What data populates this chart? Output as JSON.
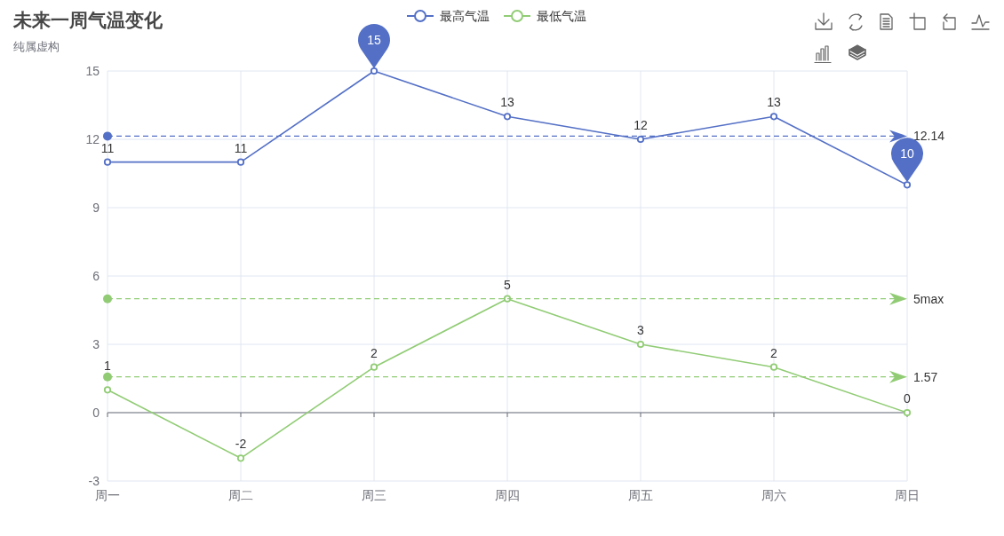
{
  "chart_data": {
    "type": "line",
    "title": "未来一周气温变化",
    "subtitle": "纯属虚构",
    "categories": [
      "周一",
      "周二",
      "周三",
      "周四",
      "周五",
      "周六",
      "周日"
    ],
    "series": [
      {
        "name": "最高气温",
        "color": "#5470c6",
        "values": [
          11,
          11,
          15,
          13,
          12,
          13,
          10
        ],
        "value_labels": [
          "11",
          "11",
          null,
          "13",
          "12",
          "13",
          null
        ]
      },
      {
        "name": "最低气温",
        "color": "#91cc75",
        "values": [
          1,
          -2,
          2,
          5,
          3,
          2,
          0
        ],
        "value_labels": [
          "1",
          "-2",
          "2",
          "5",
          "3",
          "2",
          "0"
        ]
      }
    ],
    "ylim": [
      -3,
      15
    ],
    "yticks": [
      -3,
      0,
      3,
      6,
      9,
      12,
      15
    ],
    "grid": true,
    "legend": "top",
    "marker": "circle",
    "ref_lines": [
      {
        "axis": "y",
        "value": 12.14,
        "label": "12.14",
        "color": "#5470c6",
        "line_style": "dashed"
      },
      {
        "axis": "y",
        "value": 5,
        "label": "5max",
        "color": "#91cc75",
        "line_style": "dashed"
      },
      {
        "axis": "y",
        "value": 1.57,
        "label": "1.57",
        "color": "#91cc75",
        "line_style": "dashed"
      }
    ],
    "annotations": [
      {
        "text": "15",
        "x": "周三",
        "y": 15
      },
      {
        "text": "10",
        "x": "周日",
        "y": 10
      }
    ]
  }
}
